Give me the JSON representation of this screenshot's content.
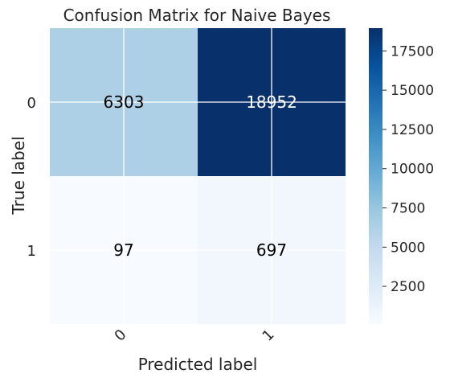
{
  "chart_data": {
    "type": "heatmap",
    "title": "Confusion Matrix for Naive Bayes",
    "xlabel": "Predicted label",
    "ylabel": "True label",
    "x_categories": [
      "0",
      "1"
    ],
    "y_categories": [
      "0",
      "1"
    ],
    "matrix": [
      [
        6303,
        18952
      ],
      [
        97,
        697
      ]
    ],
    "colormap": "Blues",
    "colorbar": {
      "min": 97,
      "max": 18952,
      "ticks": [
        2500,
        5000,
        7500,
        10000,
        12500,
        15000,
        17500
      ],
      "tick_labels": [
        "2500",
        "5000",
        "7500",
        "10000",
        "12500",
        "15000",
        "17500"
      ]
    },
    "grid": true
  }
}
